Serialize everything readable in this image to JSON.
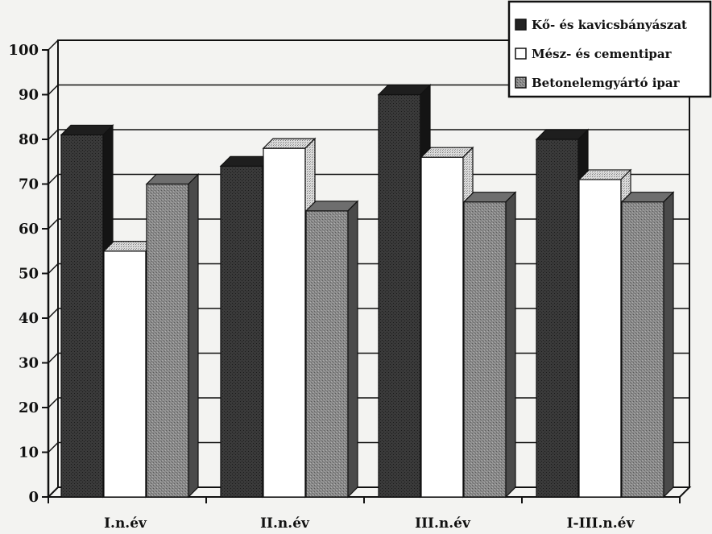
{
  "chart_data": {
    "type": "bar",
    "title": "",
    "xlabel": "",
    "ylabel": "",
    "ylim": [
      0,
      100
    ],
    "yticks": [
      0,
      10,
      20,
      30,
      40,
      50,
      60,
      70,
      80,
      90,
      100
    ],
    "grid": true,
    "legend_position": "top-right",
    "categories": [
      "I.n.év",
      "II.n.év",
      "III.n.év",
      "I-III.n.év"
    ],
    "series": [
      {
        "name": "Kő- és kavicsbányászat",
        "values": [
          81,
          74,
          90,
          80
        ],
        "color": "#2a2a2a"
      },
      {
        "name": "Mész- és cementipar",
        "values": [
          55,
          78,
          76,
          71
        ],
        "color": "#ffffff"
      },
      {
        "name": "Betonelemgyártó ipar",
        "values": [
          70,
          64,
          66,
          66
        ],
        "color": "#8a8a8a"
      }
    ]
  }
}
